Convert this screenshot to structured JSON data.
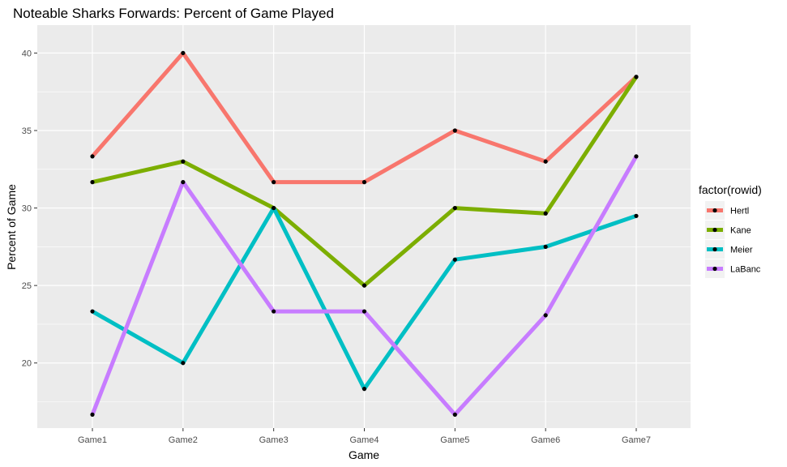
{
  "chart_data": {
    "type": "line",
    "title": "Noteable Sharks Forwards: Percent of Game Played",
    "xlabel": "Game",
    "ylabel": "Percent of Game",
    "categories": [
      "Game1",
      "Game2",
      "Game3",
      "Game4",
      "Game5",
      "Game6",
      "Game7"
    ],
    "ylim": [
      15.8,
      41.8
    ],
    "yticks": [
      20,
      25,
      30,
      35,
      40
    ],
    "grid": true,
    "legend_title": "factor(rowid)",
    "legend_position": "right",
    "series": [
      {
        "name": "Hertl",
        "color": "#F8766D",
        "values": [
          33.33,
          40.0,
          31.67,
          31.67,
          35.0,
          33.0,
          38.46
        ]
      },
      {
        "name": "Kane",
        "color": "#7CAE00",
        "values": [
          31.67,
          33.0,
          30.0,
          25.0,
          30.0,
          29.65,
          38.46
        ]
      },
      {
        "name": "Meier",
        "color": "#00BFC4",
        "values": [
          23.33,
          20.0,
          30.0,
          18.33,
          26.67,
          27.5,
          29.49
        ]
      },
      {
        "name": "LaBanc",
        "color": "#C77CFF",
        "values": [
          16.67,
          31.67,
          23.33,
          23.33,
          16.67,
          23.08,
          33.33
        ]
      }
    ]
  }
}
